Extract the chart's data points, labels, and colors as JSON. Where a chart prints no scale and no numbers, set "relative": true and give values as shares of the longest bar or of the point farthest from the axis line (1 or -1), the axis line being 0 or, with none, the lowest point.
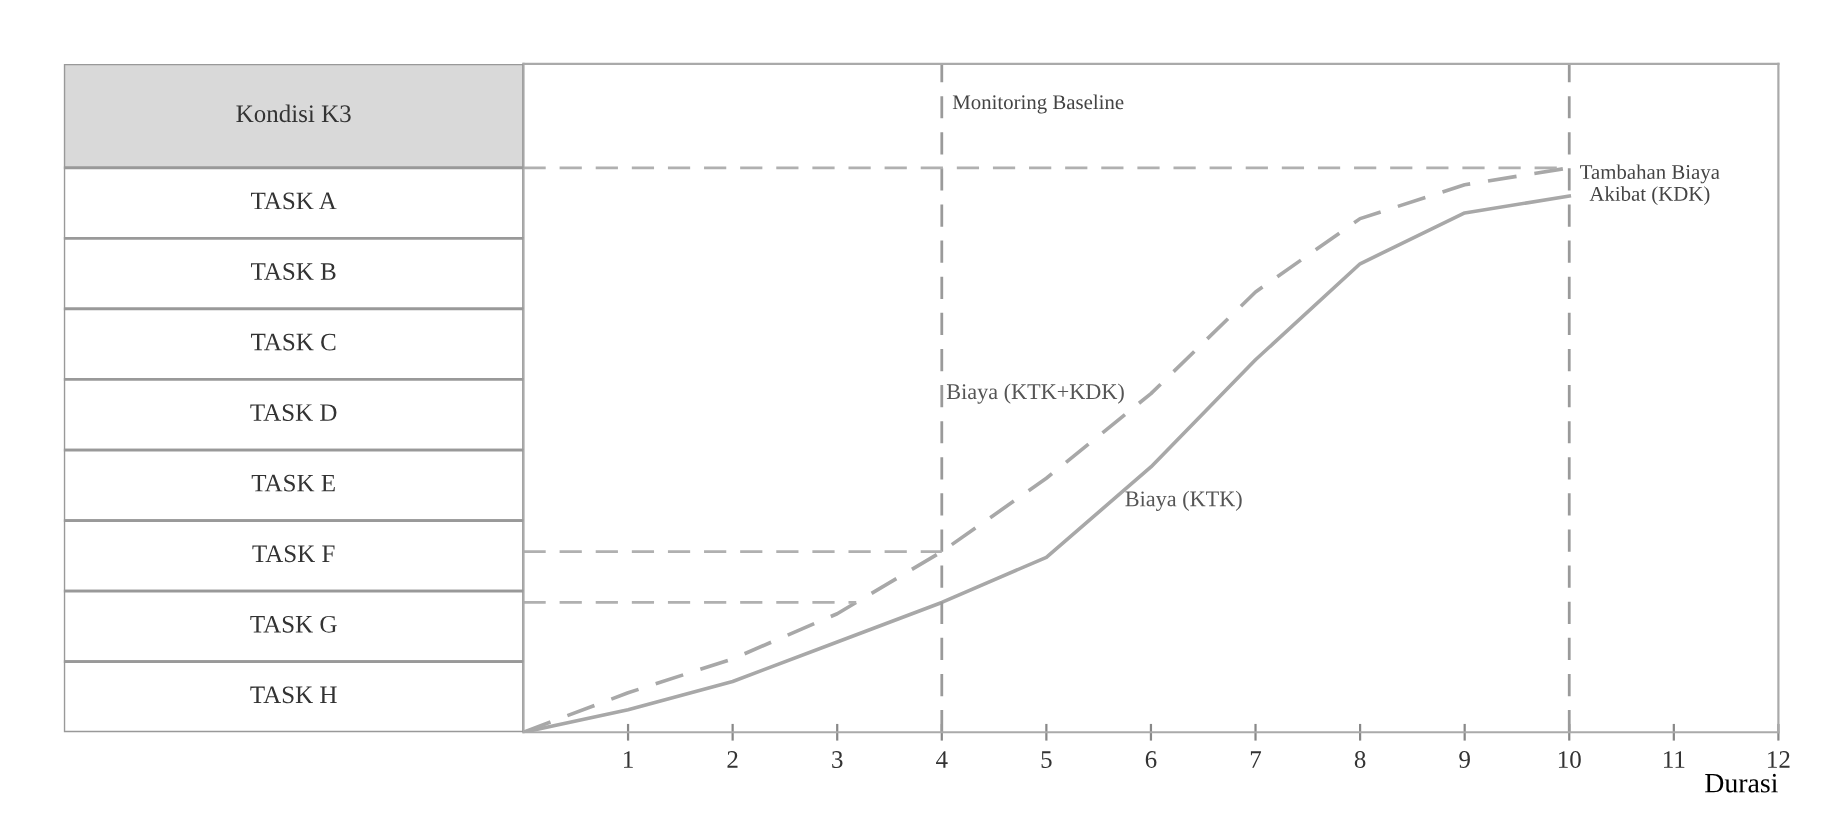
{
  "chart_data": {
    "type": "line",
    "relative": true,
    "xlabel": "Durasi",
    "x": [
      0,
      1,
      2,
      3,
      4,
      5,
      6,
      7,
      8,
      9,
      10
    ],
    "series": [
      {
        "name": "Biaya (KTK+KDK)",
        "color": "#a8a8a8",
        "line_style": "dashed",
        "values": [
          0,
          0.07,
          0.13,
          0.21,
          0.32,
          0.45,
          0.6,
          0.78,
          0.91,
          0.97,
          1.0
        ]
      },
      {
        "name": "Biaya (KTK)",
        "color": "#a8a8a8",
        "line_style": "solid",
        "values": [
          0,
          0.04,
          0.09,
          0.16,
          0.23,
          0.31,
          0.47,
          0.66,
          0.83,
          0.92,
          0.95
        ]
      }
    ],
    "xlim": [
      0,
      12
    ],
    "xticks": [
      1,
      2,
      3,
      4,
      5,
      6,
      7,
      8,
      9,
      10,
      11,
      12
    ],
    "ref_lines": [
      {
        "axis": "x",
        "value": 4,
        "label": "Monitoring Baseline",
        "color": "#9a9a9a",
        "line_style": "dashed"
      },
      {
        "axis": "x",
        "value": 10,
        "color": "#9a9a9a",
        "line_style": "dashed"
      },
      {
        "axis": "y",
        "value": 1.0,
        "color": "#b0b0b0",
        "line_style": "dashed"
      },
      {
        "axis": "y",
        "value": 0.32,
        "color": "#b0b0b0",
        "line_style": "dashed"
      },
      {
        "axis": "y",
        "value": 0.23,
        "color": "#b0b0b0",
        "line_style": "dashed"
      }
    ],
    "annotations": [
      "Kondisi K3",
      "TASK A",
      "TASK B",
      "TASK C",
      "TASK D",
      "TASK E",
      "TASK F",
      "TASK G",
      "TASK H",
      {
        "text": "Tambahan Biaya\nAkibat (KDK)",
        "x": 10,
        "y": 0.97
      }
    ],
    "grid": false,
    "legend": false
  }
}
